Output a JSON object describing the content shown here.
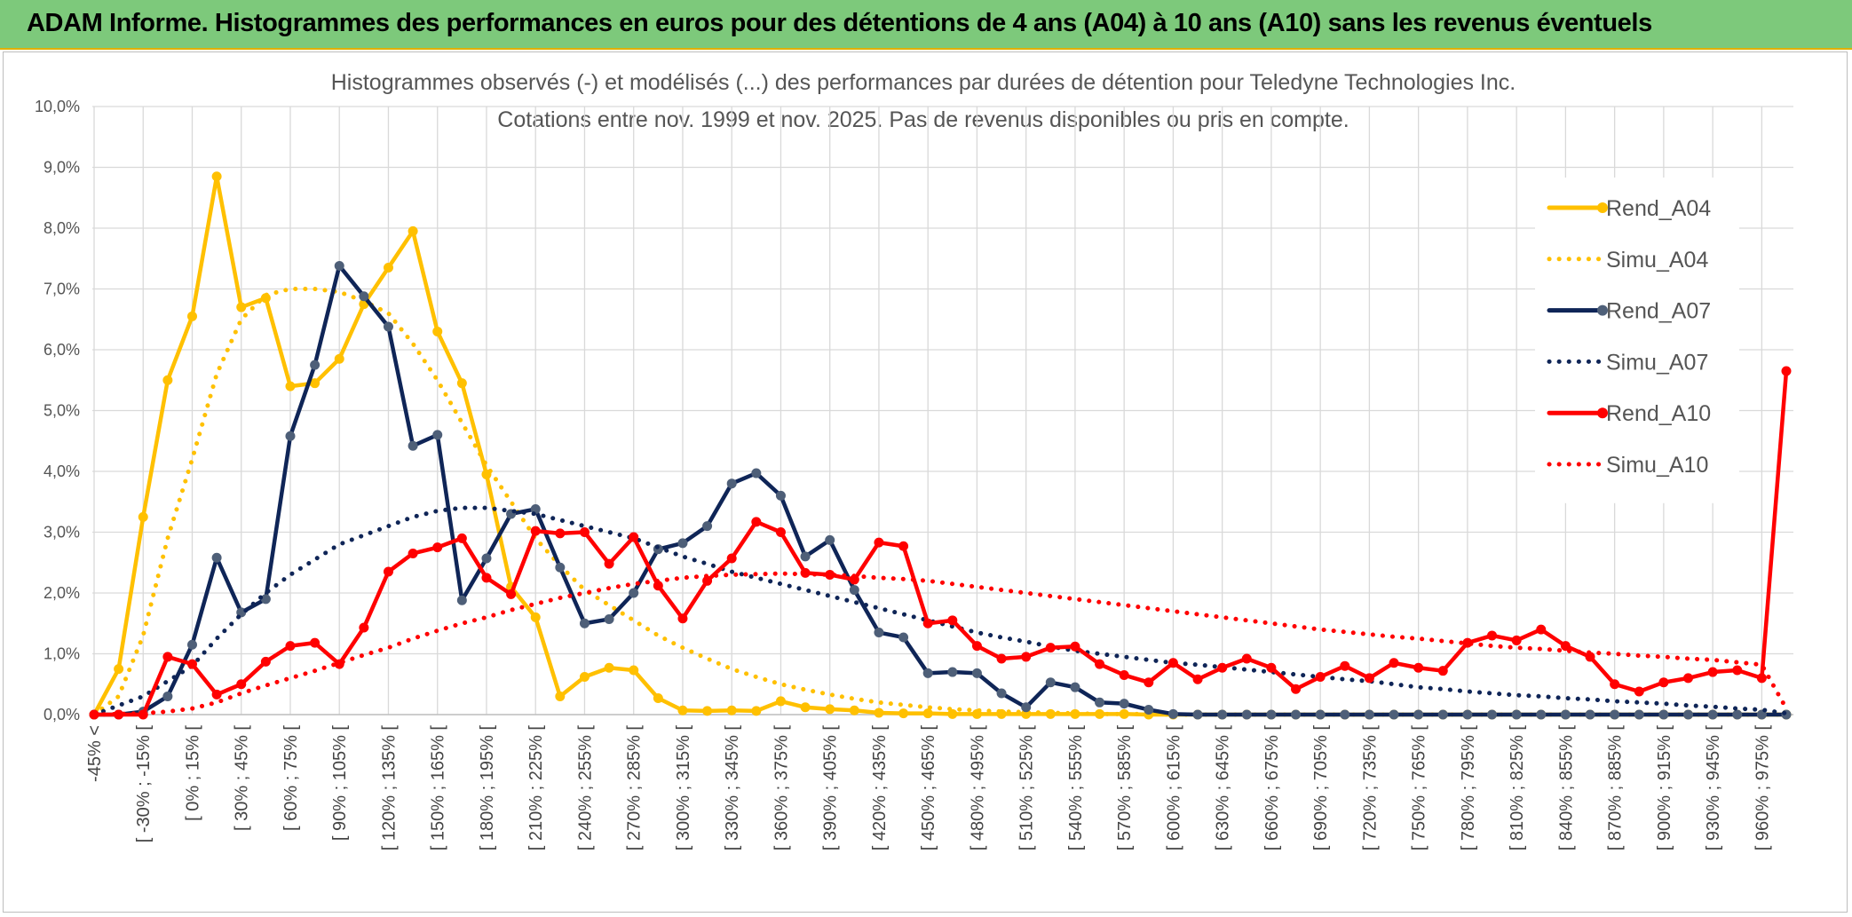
{
  "header": {
    "title": "ADAM Informe. Histogrammes des performances en euros pour des détentions de 4 ans (A04) à 10 ans (A10) sans les revenus éventuels"
  },
  "chart_data": {
    "type": "line",
    "title": "Histogrammes observés (-) et modélisés (...) des performances par durées de détention pour Teledyne Technologies Inc.",
    "subtitle": "Cotations entre nov. 1999 et nov. 2025. Pas de revenus disponibles ou pris en compte.",
    "categories": [
      "-45% <",
      null,
      "[ -30% ; -15% [",
      null,
      "[ 0% ; 15% [",
      null,
      "[ 30% ; 45% [",
      null,
      "[ 60% ; 75% [",
      null,
      "[ 90% ; 105% [",
      null,
      "[ 120% ; 135% [",
      null,
      "[ 150% ; 165% [",
      null,
      "[ 180% ; 195% [",
      null,
      "[ 210% ; 225% [",
      null,
      "[ 240% ; 255% [",
      null,
      "[ 270% ; 285% [",
      null,
      "[ 300% ; 315% [",
      null,
      "[ 330% ; 345% [",
      null,
      "[ 360% ; 375% [",
      null,
      "[ 390% ; 405% [",
      null,
      "[ 420% ; 435% [",
      null,
      "[ 450% ; 465% [",
      null,
      "[ 480% ; 495% [",
      null,
      "[ 510% ; 525% [",
      null,
      "[ 540% ; 555% [",
      null,
      "[ 570% ; 585% [",
      null,
      "[ 600% ; 615% [",
      null,
      "[ 630% ; 645% [",
      null,
      "[ 660% ; 675% [",
      null,
      "[ 690% ; 705% [",
      null,
      "[ 720% ; 735% [",
      null,
      "[ 750% ; 765% [",
      null,
      "[ 780% ; 795% [",
      null,
      "[ 810% ; 825% [",
      null,
      "[ 840% ; 855% [",
      null,
      "[ 870% ; 885% [",
      null,
      "[ 900% ; 915% [",
      null,
      "[ 930% ; 945% [",
      null,
      "[ 960% ; 975% [",
      null
    ],
    "series": [
      {
        "name": "Rend_A04",
        "color": "#ffc000",
        "marker_color": "#ffc000",
        "line_style": "solid",
        "markers": true,
        "values": [
          0,
          0.75,
          3.25,
          5.5,
          6.55,
          8.85,
          6.7,
          6.85,
          5.4,
          5.45,
          5.85,
          6.75,
          7.35,
          7.95,
          6.3,
          5.45,
          3.95,
          2.1,
          1.6,
          0.3,
          0.62,
          0.77,
          0.73,
          0.27,
          0.07,
          0.06,
          0.07,
          0.06,
          0.22,
          0.12,
          0.09,
          0.07,
          0.03,
          0.02,
          0.02,
          0.01,
          0.01,
          0.01,
          0.01,
          0.01,
          0.01,
          0.01,
          0.01,
          0,
          0,
          0,
          0,
          0,
          0,
          0,
          0,
          0,
          0,
          0,
          0,
          0,
          0,
          0,
          0,
          0,
          0,
          0,
          0,
          0,
          0,
          0,
          0,
          0,
          0,
          0
        ]
      },
      {
        "name": "Simu_A04",
        "color": "#ffc000",
        "line_style": "dotted",
        "markers": false,
        "values": [
          0,
          0.3,
          1.3,
          2.9,
          4.2,
          5.6,
          6.5,
          6.9,
          7.0,
          7.0,
          6.95,
          6.8,
          6.6,
          6.1,
          5.5,
          4.8,
          4.1,
          3.5,
          2.9,
          2.45,
          2.05,
          1.8,
          1.55,
          1.3,
          1.1,
          0.92,
          0.75,
          0.62,
          0.5,
          0.41,
          0.33,
          0.26,
          0.2,
          0.16,
          0.12,
          0.09,
          0.07,
          0.05,
          0.04,
          0.03,
          0.02,
          0.01,
          0.01,
          0.01,
          0,
          0,
          0,
          0,
          0,
          0,
          0,
          0,
          0,
          0,
          0,
          0,
          0,
          0,
          0,
          0,
          0,
          0,
          0,
          0,
          0,
          0,
          0,
          0,
          0,
          0
        ]
      },
      {
        "name": "Rend_A07",
        "color": "#0f2557",
        "marker_color": "#4e5f78",
        "line_style": "solid",
        "markers": true,
        "values": [
          0,
          0,
          0.05,
          0.3,
          1.15,
          2.58,
          1.68,
          1.9,
          4.58,
          5.75,
          7.38,
          6.88,
          6.38,
          4.42,
          4.6,
          1.88,
          2.57,
          3.3,
          3.38,
          2.42,
          1.5,
          1.57,
          2.0,
          2.72,
          2.82,
          3.1,
          3.8,
          3.97,
          3.6,
          2.6,
          2.87,
          2.05,
          1.35,
          1.27,
          0.68,
          0.7,
          0.68,
          0.35,
          0.12,
          0.53,
          0.45,
          0.2,
          0.18,
          0.08,
          0.01,
          0,
          0,
          0,
          0,
          0,
          0,
          0,
          0,
          0,
          0,
          0,
          0,
          0,
          0,
          0,
          0,
          0,
          0,
          0,
          0,
          0,
          0,
          0,
          0,
          0
        ]
      },
      {
        "name": "Simu_A07",
        "color": "#0f2557",
        "line_style": "dotted",
        "markers": false,
        "values": [
          0,
          0.15,
          0.3,
          0.55,
          0.8,
          1.25,
          1.65,
          2.0,
          2.3,
          2.55,
          2.8,
          2.95,
          3.1,
          3.25,
          3.35,
          3.4,
          3.4,
          3.35,
          3.3,
          3.2,
          3.1,
          3.0,
          2.9,
          2.75,
          2.6,
          2.48,
          2.35,
          2.25,
          2.15,
          2.05,
          1.95,
          1.85,
          1.75,
          1.65,
          1.55,
          1.45,
          1.35,
          1.27,
          1.2,
          1.12,
          1.05,
          1.0,
          0.95,
          0.9,
          0.85,
          0.82,
          0.78,
          0.74,
          0.7,
          0.66,
          0.62,
          0.58,
          0.55,
          0.5,
          0.45,
          0.42,
          0.38,
          0.35,
          0.32,
          0.3,
          0.27,
          0.25,
          0.22,
          0.2,
          0.18,
          0.15,
          0.13,
          0.1,
          0.08,
          0.02
        ]
      },
      {
        "name": "Rend_A10",
        "color": "#ff0000",
        "marker_color": "#ff0000",
        "line_style": "solid",
        "markers": true,
        "values": [
          0,
          0,
          0,
          0.95,
          0.83,
          0.33,
          0.5,
          0.87,
          1.13,
          1.18,
          0.83,
          1.43,
          2.35,
          2.65,
          2.75,
          2.9,
          2.25,
          1.98,
          3.02,
          2.98,
          3.0,
          2.48,
          2.92,
          2.12,
          1.58,
          2.2,
          2.57,
          3.17,
          3.0,
          2.33,
          2.3,
          2.22,
          2.83,
          2.77,
          1.5,
          1.55,
          1.13,
          0.92,
          0.95,
          1.1,
          1.12,
          0.83,
          0.65,
          0.53,
          0.85,
          0.58,
          0.77,
          0.92,
          0.77,
          0.42,
          0.62,
          0.8,
          0.6,
          0.85,
          0.77,
          0.72,
          1.18,
          1.3,
          1.22,
          1.4,
          1.13,
          0.95,
          0.5,
          0.38,
          0.53,
          0.6,
          0.7,
          0.73,
          0.6,
          5.65
        ]
      },
      {
        "name": "Simu_A10",
        "color": "#ff0000",
        "line_style": "dotted",
        "markers": false,
        "values": [
          0,
          0.01,
          0.02,
          0.05,
          0.1,
          0.2,
          0.35,
          0.48,
          0.6,
          0.72,
          0.85,
          0.98,
          1.1,
          1.25,
          1.38,
          1.5,
          1.6,
          1.72,
          1.82,
          1.92,
          2.0,
          2.08,
          2.15,
          2.2,
          2.25,
          2.28,
          2.3,
          2.31,
          2.32,
          2.31,
          2.3,
          2.28,
          2.25,
          2.23,
          2.2,
          2.15,
          2.1,
          2.05,
          2.0,
          1.95,
          1.9,
          1.85,
          1.8,
          1.75,
          1.7,
          1.65,
          1.6,
          1.55,
          1.5,
          1.45,
          1.4,
          1.36,
          1.32,
          1.28,
          1.25,
          1.21,
          1.17,
          1.13,
          1.1,
          1.08,
          1.05,
          1.02,
          1.0,
          0.97,
          0.95,
          0.92,
          0.9,
          0.86,
          0.82,
          0.1
        ]
      }
    ],
    "ylim": [
      0,
      10
    ],
    "yticks": [
      {
        "value": 0,
        "label": "0,0%"
      },
      {
        "value": 1,
        "label": "1,0%"
      },
      {
        "value": 2,
        "label": "2,0%"
      },
      {
        "value": 3,
        "label": "3,0%"
      },
      {
        "value": 4,
        "label": "4,0%"
      },
      {
        "value": 5,
        "label": "5,0%"
      },
      {
        "value": 6,
        "label": "6,0%"
      },
      {
        "value": 7,
        "label": "7,0%"
      },
      {
        "value": 8,
        "label": "8,0%"
      },
      {
        "value": 9,
        "label": "9,0%"
      },
      {
        "value": 10,
        "label": "10,0%"
      }
    ],
    "grid": true,
    "legend": "right"
  }
}
